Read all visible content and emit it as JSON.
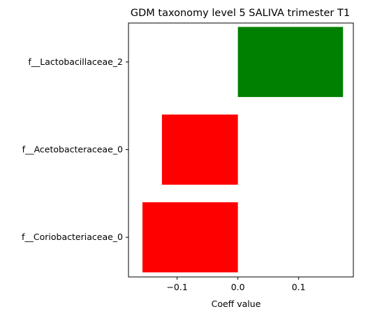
{
  "chart_data": {
    "type": "bar",
    "orientation": "horizontal",
    "title": "GDM taxonomy level 5 SALIVA trimester T1",
    "xlabel": "Coeff value",
    "ylabel": "",
    "categories": [
      "f__Lactobacillaceae_2",
      "f__Acetobacteraceae_0",
      "f__Coriobacteriaceae_0"
    ],
    "values": [
      0.173,
      -0.125,
      -0.157
    ],
    "bar_colors": [
      "#008000",
      "#ff0000",
      "#ff0000"
    ],
    "xlim": [
      -0.18,
      0.19
    ],
    "xticks": [
      -0.1,
      0.0,
      0.1
    ],
    "xtick_labels": [
      "−0.1",
      "0.0",
      "0.1"
    ],
    "grid": false,
    "legend": "none"
  }
}
